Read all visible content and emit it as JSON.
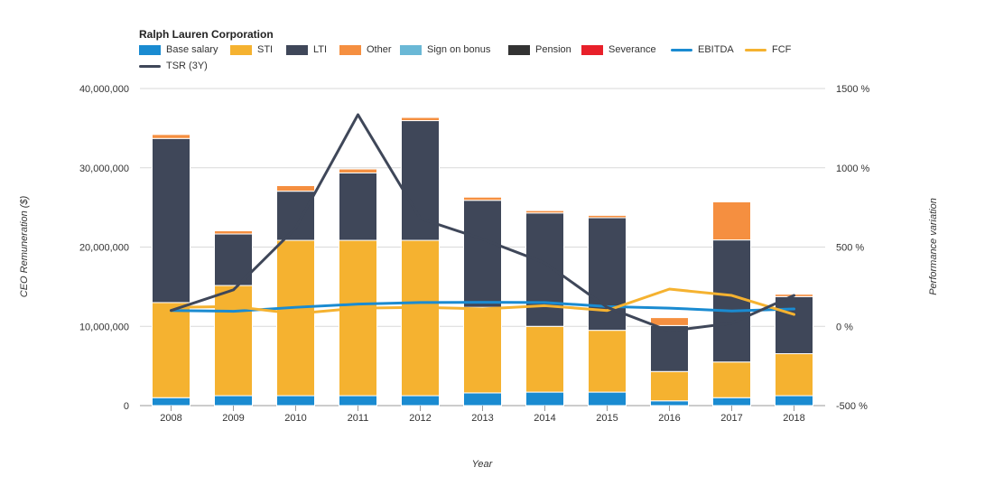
{
  "chart_data": {
    "type": "bar",
    "title": "Ralph Lauren Corporation",
    "xlabel": "Year",
    "ylabel": "CEO Remuneration ($)",
    "y2label": "Performance variation",
    "ylim": [
      0,
      40000000
    ],
    "y2lim": [
      -500,
      1500
    ],
    "y_ticks": [
      "0",
      "10,000,000",
      "20,000,000",
      "30,000,000",
      "40,000,000"
    ],
    "y2_ticks": [
      "-500 %",
      "0 %",
      "500 %",
      "1000 %",
      "1500 %"
    ],
    "grid": true,
    "legend_position": "top-left",
    "categories": [
      "2008",
      "2009",
      "2010",
      "2011",
      "2012",
      "2013",
      "2014",
      "2015",
      "2016",
      "2017",
      "2018"
    ],
    "bar_series": [
      {
        "name": "Base salary",
        "color": "#1a8bd1",
        "values": [
          1000000,
          1250000,
          1250000,
          1250000,
          1250000,
          1600000,
          1700000,
          1700000,
          600000,
          1000000,
          1250000
        ]
      },
      {
        "name": "STI",
        "color": "#f5b230",
        "values": [
          12000000,
          13900000,
          19600000,
          19600000,
          19600000,
          10800000,
          8300000,
          7800000,
          3700000,
          4500000,
          5300000
        ]
      },
      {
        "name": "LTI",
        "color": "#3f4759",
        "values": [
          20700000,
          6500000,
          6200000,
          8500000,
          15100000,
          13500000,
          14300000,
          14200000,
          5800000,
          15400000,
          7200000
        ]
      },
      {
        "name": "Other",
        "color": "#f58f40",
        "values": [
          500000,
          400000,
          700000,
          500000,
          400000,
          400000,
          300000,
          300000,
          1000000,
          4800000,
          300000
        ]
      },
      {
        "name": "Sign on bonus",
        "color": "#6ab8d6",
        "values": [
          0,
          0,
          0,
          0,
          0,
          0,
          0,
          0,
          0,
          0,
          0
        ]
      },
      {
        "name": "Pension",
        "color": "#333333",
        "values": [
          0,
          0,
          0,
          0,
          0,
          0,
          0,
          0,
          0,
          0,
          0
        ]
      },
      {
        "name": "Severance",
        "color": "#e8202a",
        "values": [
          0,
          0,
          0,
          0,
          0,
          0,
          0,
          0,
          0,
          0,
          0
        ]
      }
    ],
    "line_series": [
      {
        "name": "EBITDA",
        "color": "#1a8bd1",
        "values": [
          100,
          95,
          120,
          140,
          150,
          152,
          150,
          125,
          115,
          97,
          110
        ]
      },
      {
        "name": "FCF",
        "color": "#f5b230",
        "values": [
          120,
          125,
          80,
          115,
          120,
          110,
          130,
          100,
          235,
          195,
          75
        ]
      },
      {
        "name": "TSR (3Y)",
        "color": "#3f4759",
        "values": [
          100,
          230,
          620,
          1335,
          680,
          550,
          400,
          120,
          -30,
          20,
          195
        ]
      }
    ]
  }
}
